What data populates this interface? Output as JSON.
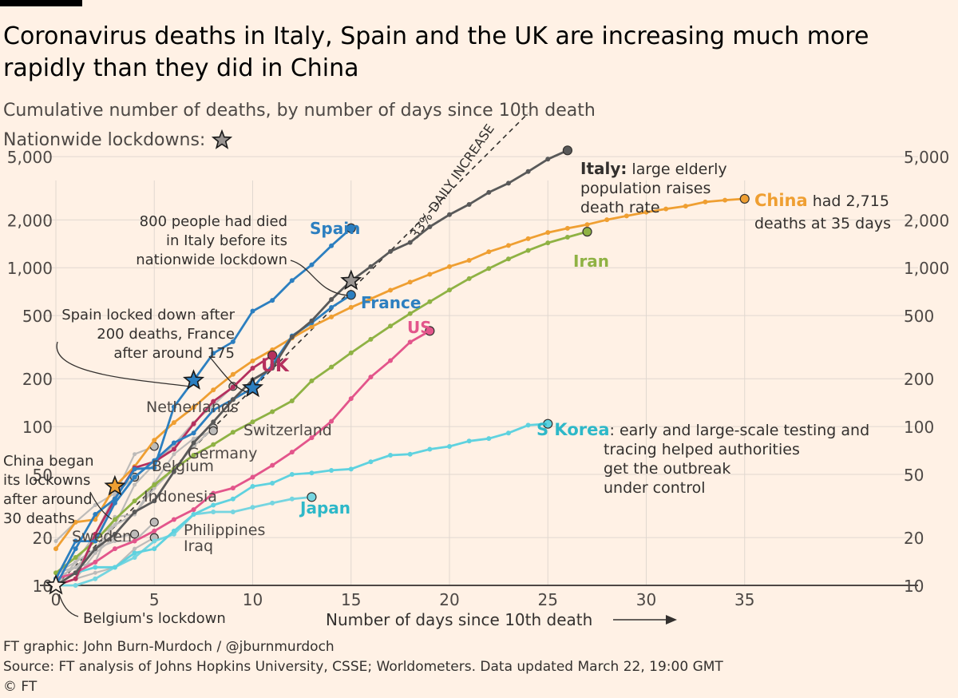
{
  "title": "Coronavirus deaths in Italy, Spain and the UK are increasing much more rapidly than they did in China",
  "subtitle": "Cumulative number of deaths, by number of days since 10th death",
  "lockdown_legend": "Nationwide lockdowns:",
  "credits": {
    "graphic": "FT graphic: John Burn-Murdoch / @jburnmurdoch",
    "source": "Source: FT analysis of Johns Hopkins University, CSSE; Worldometers. Data updated March 22, 19:00 GMT",
    "copyright": "© FT"
  },
  "colors": {
    "background": "#fff1e5",
    "italy": "#595959",
    "spain": "#2c7fc0",
    "uk": "#b5305e",
    "china": "#ef9f32",
    "iran": "#8fb244",
    "us": "#e3558b",
    "skorea": "#5fd2df",
    "japan": "#75d5e0",
    "grey": "#bdbbb9"
  },
  "chart_data": {
    "type": "line",
    "scale": "log",
    "xlabel": "Number of days since 10th death",
    "xlim": [
      0,
      42
    ],
    "ylim": [
      10,
      6500
    ],
    "x_ticks": [
      0,
      5,
      10,
      15,
      20,
      25,
      30,
      35
    ],
    "y_ticks": [
      10,
      20,
      50,
      100,
      200,
      500,
      1000,
      2000,
      5000
    ],
    "y_tick_labels": [
      "10",
      "20",
      "50",
      "100",
      "200",
      "500",
      "1,000",
      "2,000",
      "5,000"
    ],
    "reference_line": {
      "label": "33% DAILY INCREASE",
      "x": [
        0,
        24
      ],
      "y": [
        10,
        9400
      ]
    },
    "series": [
      {
        "name": "Italy",
        "key": "italy",
        "y": [
          10,
          12,
          17,
          21,
          29,
          34,
          52,
          79,
          107,
          148,
          197,
          233,
          366,
          463,
          631,
          827,
          1016,
          1266,
          1441,
          1809,
          2158,
          2503,
          2978,
          3405,
          4032,
          4825,
          5476
        ],
        "stars": [
          15
        ]
      },
      {
        "name": "Spain",
        "key": "spain",
        "y": [
          10,
          17,
          28,
          35,
          54,
          55,
          133,
          195,
          289,
          342,
          533,
          623,
          830,
          1043,
          1375,
          1772
        ],
        "stars": [
          7
        ]
      },
      {
        "name": "France",
        "key": "spain",
        "y": [
          11,
          19,
          19,
          33,
          48,
          61,
          79,
          91,
          127,
          148,
          175,
          244,
          372,
          450,
          562,
          674
        ],
        "stars": [
          10
        ]
      },
      {
        "name": "UK",
        "key": "uk",
        "y": [
          10,
          11,
          21,
          35,
          55,
          60,
          72,
          104,
          144,
          177,
          233,
          281
        ]
      },
      {
        "name": "China",
        "key": "china",
        "y": [
          17,
          25,
          26,
          42,
          56,
          82,
          106,
          132,
          170,
          213,
          259,
          304,
          361,
          425,
          490,
          563,
          637,
          722,
          811,
          908,
          1016,
          1113,
          1259,
          1380,
          1523,
          1665,
          1770,
          1868,
          2004,
          2118,
          2236,
          2345,
          2442,
          2592,
          2663,
          2715
        ],
        "stars": [
          3
        ]
      },
      {
        "name": "Iran",
        "key": "iran",
        "y": [
          12,
          15,
          19,
          26,
          34,
          43,
          54,
          66,
          77,
          92,
          107,
          124,
          145,
          194,
          237,
          291,
          354,
          429,
          514,
          611,
          724,
          853,
          988,
          1135,
          1284,
          1433,
          1556,
          1685
        ]
      },
      {
        "name": "US",
        "key": "us",
        "y": [
          11,
          12,
          14,
          17,
          19,
          22,
          26,
          30,
          38,
          41,
          48,
          57,
          69,
          85,
          108,
          150,
          205,
          260,
          340,
          400
        ]
      },
      {
        "name": "S Korea",
        "key": "skorea",
        "y": [
          11,
          12,
          13,
          13,
          16,
          17,
          22,
          28,
          32,
          35,
          42,
          44,
          50,
          51,
          53,
          54,
          60,
          66,
          67,
          72,
          75,
          81,
          84,
          91,
          102,
          104
        ]
      },
      {
        "name": "Japan",
        "key": "japan",
        "y": [
          10,
          10,
          11,
          13,
          15,
          19,
          21,
          28,
          29,
          29,
          31,
          33,
          35,
          36
        ]
      }
    ],
    "minor_series": [
      {
        "name": "Netherlands",
        "y": [
          10,
          12,
          20,
          24,
          43,
          58,
          77,
          106,
          136,
          179
        ]
      },
      {
        "name": "Switzerland",
        "y": [
          11,
          13,
          14,
          27,
          28,
          41,
          54,
          75,
          98
        ]
      },
      {
        "name": "Germany",
        "y": [
          12,
          13,
          17,
          24,
          28,
          44,
          67,
          84,
          94
        ]
      },
      {
        "name": "Belgium",
        "y": [
          10,
          14,
          21,
          37,
          67,
          75
        ]
      },
      {
        "name": "Indonesia",
        "y": [
          19,
          25,
          32,
          38,
          48
        ]
      },
      {
        "name": "Sweden",
        "y": [
          10,
          11,
          16,
          20,
          21
        ]
      },
      {
        "name": "Philippines",
        "y": [
          12,
          14,
          17,
          19,
          19,
          25
        ]
      },
      {
        "name": "Iraq",
        "y": [
          10,
          11,
          12,
          13,
          17,
          20
        ]
      }
    ],
    "labels": {
      "italy_name": "Italy:",
      "italy_note": [
        "large elderly",
        "population raises",
        "death rate"
      ],
      "china_name": "China",
      "china_note": [
        "had 2,715",
        "deaths at 35 days"
      ],
      "spain": "Spain",
      "france": "France",
      "uk": "UK",
      "iran": "Iran",
      "us": "US",
      "skorea_name": "S Korea",
      "skorea_note": [
        ": early and large-scale testing and",
        "tracing helped authorities",
        "get the outbreak",
        "under control"
      ],
      "japan": "Japan",
      "netherlands": "Netherlands",
      "switzerland": "Switzerland",
      "germany": "Germany",
      "belgium": "Belgium",
      "indonesia": "Indonesia",
      "sweden": "Sweden",
      "philippines": "Philippines",
      "iraq": "Iraq"
    },
    "annotations": {
      "italy_lockdown": [
        "800 people had died",
        "in Italy before its",
        "nationwide lockdown"
      ],
      "spain_france": [
        "Spain locked down after",
        "200 deaths, France",
        "after around 175"
      ],
      "china_lockdown": [
        "China began",
        "its lockowns",
        "after around",
        "30 deaths"
      ],
      "belgium_lockdown": "Belgium's lockdown"
    }
  }
}
